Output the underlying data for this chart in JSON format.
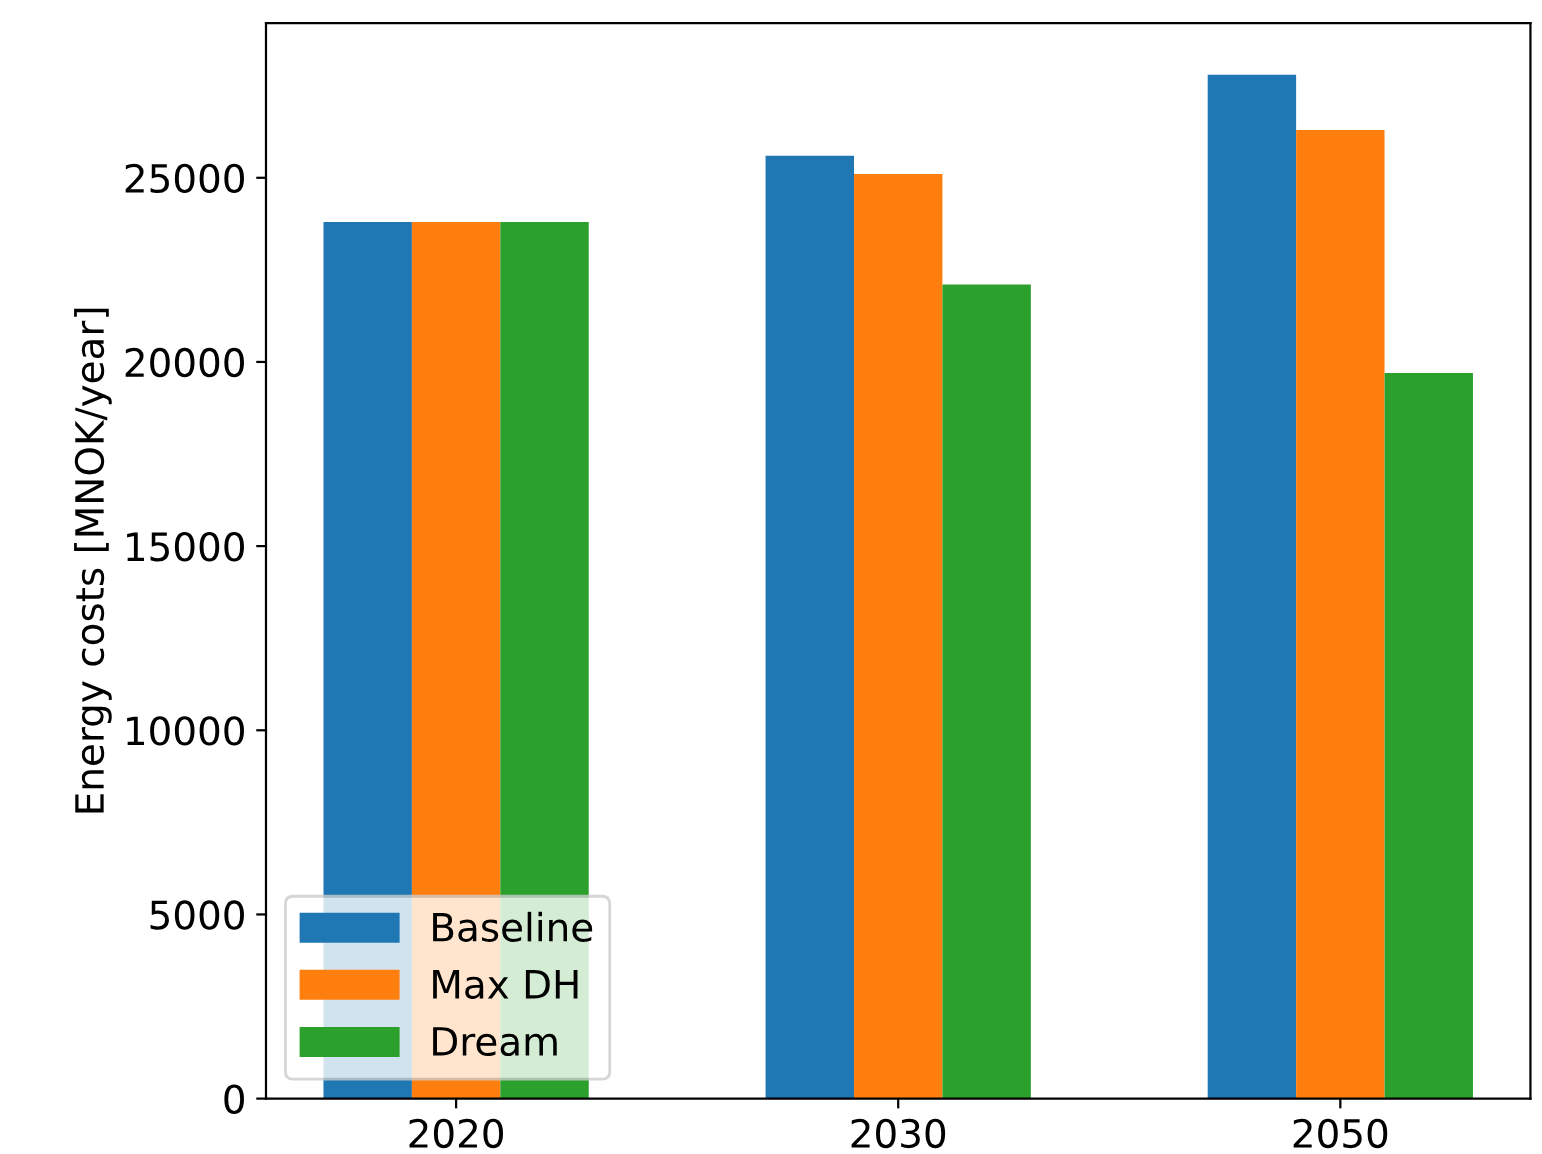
{
  "chart_data": {
    "type": "bar",
    "ylabel": "Energy costs [MNOK/year]",
    "categories": [
      "2020",
      "2030",
      "2050"
    ],
    "series": [
      {
        "name": "Baseline",
        "color": "#1f77b4",
        "values": [
          23800,
          25600,
          27800
        ]
      },
      {
        "name": "Max DH",
        "color": "#ff7f0e",
        "values": [
          23800,
          25100,
          26300
        ]
      },
      {
        "name": "Dream",
        "color": "#2ca02c",
        "values": [
          23800,
          22100,
          19700
        ]
      }
    ],
    "ylim": [
      0,
      29200
    ],
    "yticks": [
      0,
      5000,
      10000,
      15000,
      20000,
      25000
    ],
    "grid": false,
    "legend": "bottom left"
  }
}
